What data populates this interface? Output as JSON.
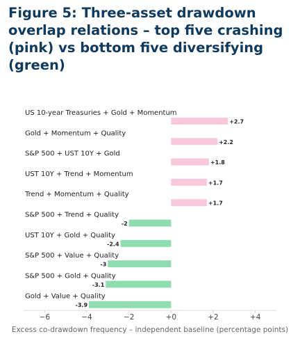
{
  "chart_data": {
    "type": "bar",
    "orientation": "horizontal",
    "title": "Figure 5: Three-asset drawdown overlap relations – top five crashing (pink) vs bottom five diversifying (green)",
    "x_label": "Excess co-drawdown frequency – independent baseline (percentage points)",
    "categories": [
      "US 10-year Treasuries + Gold + Momentum",
      "Gold + Momentum + Quality",
      "S&P 500 + UST 10Y + Gold",
      "UST 10Y + Trend + Momentum",
      "Trend + Momentum + Quality",
      "S&P 500 + Trend + Quality",
      "UST 10Y + Gold + Quality",
      "S&P 500 + Value + Quality",
      "S&P 500 + Gold + Quality",
      "Gold + Value + Quality"
    ],
    "values": [
      2.7,
      2.2,
      1.8,
      1.7,
      1.7,
      -2,
      -2.4,
      -3,
      -3.1,
      -3.9
    ],
    "value_labels": [
      "+2.7",
      "+2.2",
      "+1.8",
      "+1.7",
      "+1.7",
      "-2",
      "-2.4",
      "-3",
      "-3.1",
      "-3.9"
    ],
    "colors": [
      "#f9c8dc",
      "#f9c8dc",
      "#f9c8dc",
      "#f9c8dc",
      "#f9c8dc",
      "#8edcb0",
      "#8edcb0",
      "#8edcb0",
      "#8edcb0",
      "#8edcb0"
    ],
    "xlim": [
      -7,
      5
    ],
    "xticks": [
      {
        "value": -6,
        "label": "−6"
      },
      {
        "value": -4,
        "label": "−4"
      },
      {
        "value": -2,
        "label": "−2"
      },
      {
        "value": 0,
        "label": "+0"
      },
      {
        "value": 2,
        "label": "+2"
      },
      {
        "value": 4,
        "label": "+4"
      }
    ]
  }
}
